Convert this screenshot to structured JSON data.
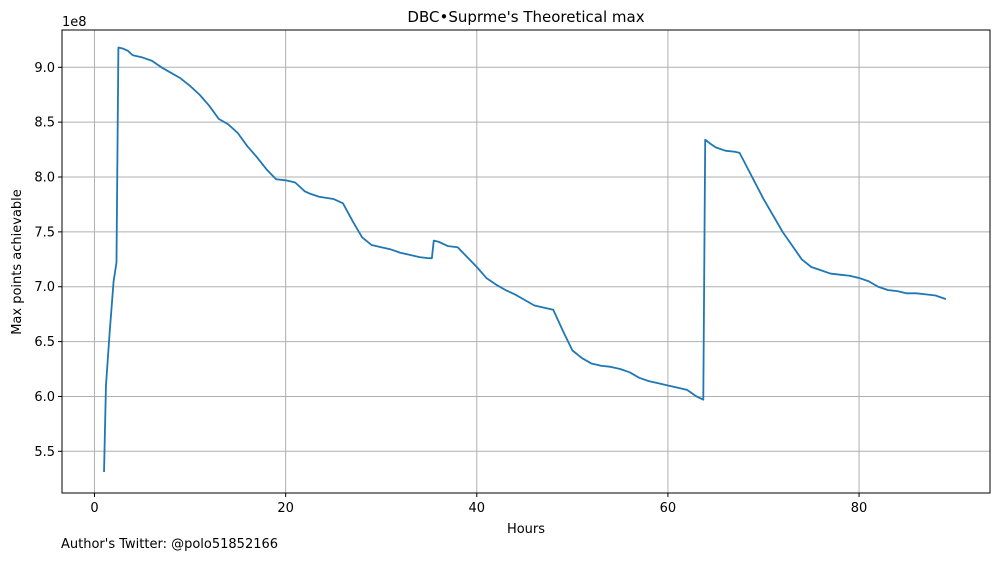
{
  "chart_data": {
    "type": "line",
    "title": "DBC•Suprme's Theoretical max",
    "xlabel": "Hours",
    "ylabel": "Max points achievable",
    "y_offset_label": "1e8",
    "xlim": [
      -3.4,
      93.7
    ],
    "ylim": [
      5.12,
      9.34
    ],
    "xticks": [
      0,
      20,
      40,
      60,
      80
    ],
    "yticks": [
      5.5,
      6.0,
      6.5,
      7.0,
      7.5,
      8.0,
      8.5,
      9.0
    ],
    "xtick_labels": [
      "0",
      "20",
      "40",
      "60",
      "80"
    ],
    "ytick_labels": [
      "5.5",
      "6.0",
      "6.5",
      "7.0",
      "7.5",
      "8.0",
      "8.5",
      "9.0"
    ],
    "grid": true,
    "series": [
      {
        "color": "#1f77b4",
        "x": [
          1.0,
          1.2,
          1.6,
          2.0,
          2.3,
          2.4,
          2.5,
          3.0,
          3.5,
          4.0,
          5.0,
          6.0,
          7.0,
          8.0,
          9.0,
          10.0,
          11.0,
          12.0,
          13.0,
          14.0,
          15.0,
          16.0,
          17.0,
          18.0,
          19.0,
          20.0,
          21.0,
          22.0,
          22.5,
          23.5,
          25.0,
          26.0,
          27.0,
          28.0,
          29.0,
          30.0,
          31.0,
          32.0,
          33.0,
          34.0,
          35.0,
          35.3,
          35.5,
          36.0,
          37.0,
          38.0,
          39.0,
          40.0,
          41.0,
          42.0,
          43.0,
          44.0,
          45.0,
          46.0,
          47.0,
          48.0,
          49.0,
          50.0,
          51.0,
          52.0,
          53.0,
          54.0,
          55.0,
          56.0,
          57.0,
          58.0,
          59.0,
          60.0,
          61.0,
          62.0,
          63.0,
          63.7,
          63.9,
          64.5,
          65.0,
          66.0,
          67.0,
          67.5,
          70.0,
          72.0,
          74.0,
          75.0,
          76.0,
          77.0,
          78.0,
          79.0,
          80.0,
          81.0,
          82.0,
          83.0,
          84.0,
          85.0,
          86.0,
          87.0,
          88.0,
          89.0
        ],
        "values": [
          5.32,
          6.1,
          6.6,
          7.05,
          7.22,
          8.2,
          9.18,
          9.17,
          9.15,
          9.11,
          9.09,
          9.06,
          9.0,
          8.95,
          8.9,
          8.83,
          8.75,
          8.65,
          8.53,
          8.48,
          8.4,
          8.28,
          8.18,
          8.07,
          7.98,
          7.97,
          7.95,
          7.87,
          7.85,
          7.82,
          7.8,
          7.76,
          7.6,
          7.45,
          7.38,
          7.36,
          7.34,
          7.31,
          7.29,
          7.27,
          7.26,
          7.26,
          7.42,
          7.41,
          7.37,
          7.36,
          7.27,
          7.18,
          7.08,
          7.02,
          6.97,
          6.93,
          6.88,
          6.83,
          6.81,
          6.79,
          6.6,
          6.42,
          6.35,
          6.3,
          6.28,
          6.27,
          6.25,
          6.22,
          6.17,
          6.14,
          6.12,
          6.1,
          6.08,
          6.06,
          6.0,
          5.97,
          8.34,
          8.3,
          8.27,
          8.24,
          8.23,
          8.22,
          7.8,
          7.5,
          7.25,
          7.18,
          7.15,
          7.12,
          7.11,
          7.1,
          7.08,
          7.05,
          7.0,
          6.97,
          6.96,
          6.94,
          6.94,
          6.93,
          6.92,
          6.89
        ]
      }
    ]
  },
  "footer": {
    "text": "Author's Twitter: @polo51852166"
  }
}
